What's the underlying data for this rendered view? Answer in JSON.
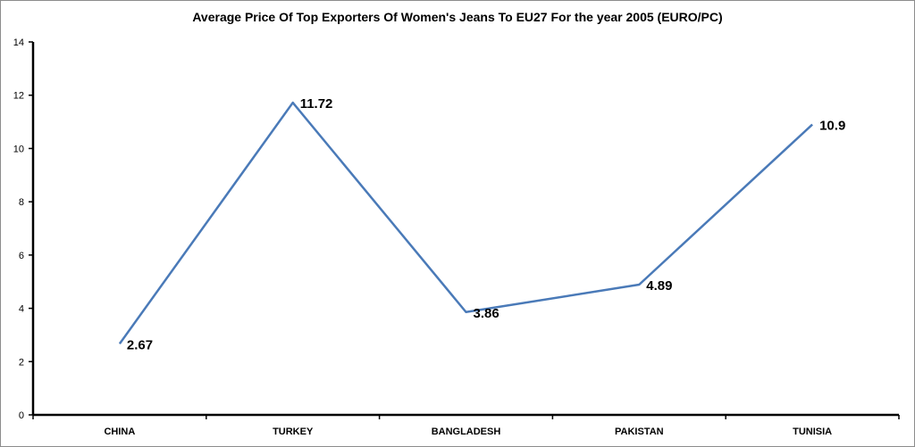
{
  "chart_data": {
    "type": "line",
    "title": "Average Price Of Top Exporters Of Women's Jeans To EU27 For the year 2005  (EURO/PC)",
    "xlabel": "",
    "ylabel": "",
    "categories": [
      "CHINA",
      "TURKEY",
      "BANGLADESH",
      "PAKISTAN",
      "TUNISIA"
    ],
    "series": [
      {
        "values": [
          2.67,
          11.72,
          3.86,
          4.89,
          10.9
        ],
        "color": "#4a7ab8"
      }
    ],
    "data_labels": [
      "2.67",
      "11.72",
      "3.86",
      "4.89",
      "10.9"
    ],
    "ylim": [
      0,
      14
    ],
    "yticks": [
      "0",
      "2",
      "4",
      "6",
      "8",
      "10",
      "12",
      "14"
    ],
    "grid": false,
    "legend": "none"
  }
}
